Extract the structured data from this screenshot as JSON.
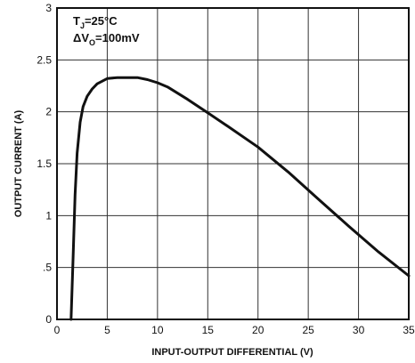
{
  "chart_data": {
    "type": "line",
    "xlabel": "INPUT-OUTPUT DIFFERENTIAL (V)",
    "ylabel": "OUTPUT CURRENT (A)",
    "xlim": [
      0,
      35
    ],
    "ylim": [
      0,
      3
    ],
    "x_ticks": [
      "0",
      "5",
      "10",
      "15",
      "20",
      "25",
      "30",
      "35"
    ],
    "y_ticks": [
      "0",
      ".5",
      "1",
      "1.5",
      "2",
      "2.5",
      "3"
    ],
    "grid": true,
    "annotations": {
      "line1": {
        "main": "T",
        "sub": "J",
        "rest": "=25°C"
      },
      "line2": {
        "main": "ΔV",
        "sub": "O",
        "rest": "=100mV"
      }
    },
    "series": [
      {
        "x": [
          1.4,
          1.6,
          1.8,
          2.0,
          2.3,
          2.6,
          3.0,
          3.5,
          4.0,
          5.0,
          6.0,
          7.0,
          8.0,
          9.0,
          10.0,
          11.0,
          12.0,
          13.0,
          15.0,
          17.0,
          20.0,
          23.0,
          26.0,
          29.0,
          32.0,
          35.0
        ],
        "y": [
          0.0,
          0.6,
          1.2,
          1.6,
          1.9,
          2.05,
          2.15,
          2.22,
          2.27,
          2.32,
          2.33,
          2.33,
          2.33,
          2.31,
          2.28,
          2.24,
          2.18,
          2.12,
          1.99,
          1.86,
          1.66,
          1.42,
          1.16,
          0.9,
          0.65,
          0.42
        ]
      }
    ]
  }
}
